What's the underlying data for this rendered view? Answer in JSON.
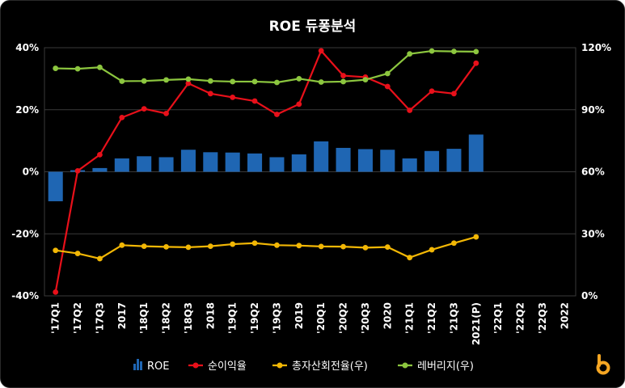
{
  "chart_data": {
    "type": "bar+line",
    "title": "ROE 듀퐁분석",
    "categories": [
      "'17Q1",
      "'17Q2",
      "'17Q3",
      "2017",
      "'18Q1",
      "'18Q2",
      "'18Q3",
      "2018",
      "'19Q1",
      "'19Q2",
      "'19Q3",
      "2019",
      "'20Q1",
      "'20Q2",
      "'20Q3",
      "2020",
      "'21Q1",
      "'21Q2",
      "'21Q3",
      "2021(P)",
      "'22Q1",
      "'22Q2",
      "'22Q3",
      "2022"
    ],
    "y_left": {
      "ticks": [
        "40%",
        "20%",
        "0%",
        "-20%",
        "-40%"
      ],
      "range": [
        -40,
        40
      ]
    },
    "y_right": {
      "ticks": [
        "120%",
        "90%",
        "60%",
        "30%",
        "0%"
      ],
      "range": [
        0,
        120
      ]
    },
    "series": [
      {
        "name": "ROE",
        "type": "bar",
        "axis": "left",
        "color": "#1f66b3",
        "values": [
          -9.5,
          0.5,
          1.2,
          4.3,
          5.0,
          4.7,
          7.1,
          6.3,
          6.2,
          5.9,
          4.7,
          5.6,
          9.8,
          7.7,
          7.3,
          7.1,
          4.3,
          6.7,
          7.4,
          12.0,
          null,
          null,
          null,
          null
        ]
      },
      {
        "name": "순이익율",
        "type": "line",
        "axis": "left",
        "color": "#e8101a",
        "values": [
          -38.8,
          0.3,
          5.5,
          17.5,
          20.3,
          18.8,
          28.5,
          25.2,
          24.0,
          22.8,
          18.5,
          21.8,
          39.0,
          31.0,
          30.5,
          27.5,
          19.8,
          26.0,
          25.2,
          35.0,
          null,
          null,
          null,
          null
        ]
      },
      {
        "name": "총자산회전율(우)",
        "type": "line",
        "axis": "right",
        "color": "#f2b705",
        "values": [
          22.0,
          20.5,
          18.0,
          24.5,
          24.0,
          23.7,
          23.5,
          24.0,
          25.0,
          25.5,
          24.5,
          24.3,
          23.9,
          23.8,
          23.3,
          23.6,
          18.5,
          22.3,
          25.5,
          28.5,
          null,
          null,
          null,
          null
        ]
      },
      {
        "name": "레버리지(우)",
        "type": "line",
        "axis": "right",
        "color": "#8cc63f",
        "values": [
          110.0,
          109.8,
          110.5,
          103.8,
          103.9,
          104.4,
          104.8,
          103.9,
          103.6,
          103.6,
          103.2,
          105.0,
          103.4,
          103.6,
          104.5,
          107.5,
          117.0,
          118.4,
          118.2,
          118.1,
          null,
          null,
          null,
          null
        ]
      }
    ],
    "legend_position": "bottom",
    "grid": true
  },
  "logo": {
    "glyph": "b",
    "color": "#f5a623"
  }
}
